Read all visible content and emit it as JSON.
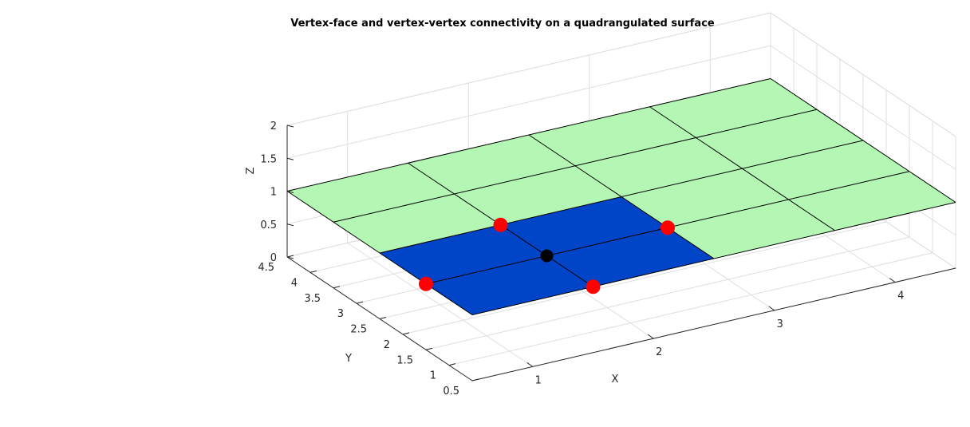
{
  "chart_data": {
    "type": "surface3d",
    "title": "Vertex-face and vertex-vertex connectivity on a quadrangulated surface",
    "xlabel": "X",
    "ylabel": "Y",
    "zlabel": "Z",
    "xlim": [
      0.5,
      4.5
    ],
    "ylim": [
      0.5,
      4.5
    ],
    "zlim": [
      0,
      2
    ],
    "x_ticks": [
      1,
      2,
      3,
      4
    ],
    "y_ticks": [
      0.5,
      1,
      1.5,
      2,
      2.5,
      3,
      3.5,
      4,
      4.5
    ],
    "z_ticks": [
      0,
      0.5,
      1,
      1.5,
      2
    ],
    "x_tick_labels": [
      "1",
      "2",
      "3",
      "4"
    ],
    "y_tick_labels": [
      "0.5",
      "1",
      "1.5",
      "2",
      "2.5",
      "3",
      "3.5",
      "4",
      "4.5"
    ],
    "z_tick_labels": [
      "0",
      "0.5",
      "1",
      "1.5",
      "2"
    ],
    "grid": true,
    "surface": {
      "x_edges": [
        0.5,
        1.5,
        2.5,
        3.5,
        4.5
      ],
      "y_edges": [
        0.5,
        1.5,
        2.5,
        3.5,
        4.5
      ],
      "z": 1,
      "face_color": "#b4f7b4",
      "edge_color": "#000000"
    },
    "highlighted_faces": {
      "color": "#0044c8",
      "faces": [
        {
          "x": [
            0.5,
            1.5
          ],
          "y": [
            0.5,
            1.5
          ]
        },
        {
          "x": [
            1.5,
            2.5
          ],
          "y": [
            0.5,
            1.5
          ]
        },
        {
          "x": [
            0.5,
            1.5
          ],
          "y": [
            1.5,
            2.5
          ]
        },
        {
          "x": [
            1.5,
            2.5
          ],
          "y": [
            1.5,
            2.5
          ]
        }
      ]
    },
    "center_vertex": {
      "x": 1.5,
      "y": 1.5,
      "z": 1,
      "color": "#000000"
    },
    "neighbor_vertices": {
      "color": "#ff0000",
      "points": [
        {
          "x": 0.5,
          "y": 1.5,
          "z": 1
        },
        {
          "x": 2.5,
          "y": 1.5,
          "z": 1
        },
        {
          "x": 1.5,
          "y": 0.5,
          "z": 1
        },
        {
          "x": 1.5,
          "y": 2.5,
          "z": 1
        }
      ]
    }
  }
}
